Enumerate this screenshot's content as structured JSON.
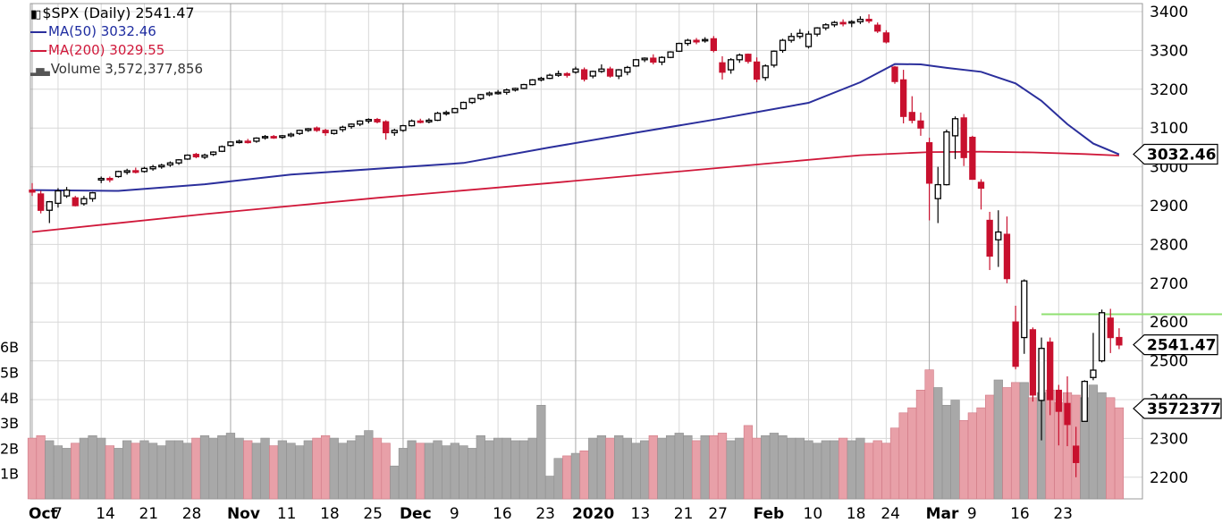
{
  "legend": {
    "symbol_title": "$SPX (Daily) 2541.47",
    "ma50_label": "MA(50) 3032.46",
    "ma200_label": "MA(200) 3029.55",
    "volume_label": "Volume 3,572,377,856"
  },
  "colors": {
    "up": "#000000",
    "down": "#c8102e",
    "ma50": "#2b2f9c",
    "ma200": "#d0183a",
    "volume_up": "#a8a8a8",
    "volume_down": "#e8a0a8",
    "grid": "#d8d8d8",
    "resistance": "#8fe070"
  },
  "chart_data": {
    "type": "candlestick",
    "symbol": "$SPX",
    "period": "Daily",
    "last_price": "2541.47",
    "ma50_last": "3032.46",
    "volume_last": "3572377",
    "ylim": [
      2170,
      3420
    ],
    "volume_ylim": [
      0,
      7
    ],
    "price_ticks": [
      "3400",
      "3300",
      "3200",
      "3100",
      "3000",
      "2900",
      "2800",
      "2700",
      "2600",
      "2500",
      "2400",
      "2300",
      "2200"
    ],
    "volume_ticks": [
      "6B",
      "5B",
      "4B",
      "3B",
      "2B",
      "1B"
    ],
    "x_labels": [
      {
        "text": "Oct",
        "i": 0,
        "bold": true
      },
      {
        "text": "7",
        "i": 3,
        "bold": false
      },
      {
        "text": "14",
        "i": 8,
        "bold": false
      },
      {
        "text": "21",
        "i": 13,
        "bold": false
      },
      {
        "text": "28",
        "i": 18,
        "bold": false
      },
      {
        "text": "Nov",
        "i": 23,
        "bold": true
      },
      {
        "text": "11",
        "i": 29,
        "bold": false
      },
      {
        "text": "18",
        "i": 34,
        "bold": false
      },
      {
        "text": "25",
        "i": 39,
        "bold": false
      },
      {
        "text": "Dec",
        "i": 43,
        "bold": true
      },
      {
        "text": "9",
        "i": 49,
        "bold": false
      },
      {
        "text": "16",
        "i": 54,
        "bold": false
      },
      {
        "text": "23",
        "i": 59,
        "bold": false
      },
      {
        "text": "2020",
        "i": 63,
        "bold": true
      },
      {
        "text": "13",
        "i": 70,
        "bold": false
      },
      {
        "text": "21",
        "i": 75,
        "bold": false
      },
      {
        "text": "27",
        "i": 79,
        "bold": false
      },
      {
        "text": "Feb",
        "i": 84,
        "bold": true
      },
      {
        "text": "10",
        "i": 90,
        "bold": false
      },
      {
        "text": "18",
        "i": 95,
        "bold": false
      },
      {
        "text": "24",
        "i": 99,
        "bold": false
      },
      {
        "text": "Mar",
        "i": 104,
        "bold": true
      },
      {
        "text": "9",
        "i": 109,
        "bold": false
      },
      {
        "text": "16",
        "i": 114,
        "bold": false
      },
      {
        "text": "23",
        "i": 119,
        "bold": false
      }
    ],
    "month_grid": [
      0,
      23,
      43,
      63,
      84,
      104
    ],
    "ohlc": [
      [
        2940,
        2958,
        2925,
        2935
      ],
      [
        2930,
        2938,
        2880,
        2888
      ],
      [
        2888,
        2912,
        2855,
        2910
      ],
      [
        2906,
        2945,
        2895,
        2938
      ],
      [
        2925,
        2948,
        2920,
        2940
      ],
      [
        2920,
        2925,
        2898,
        2900
      ],
      [
        2905,
        2925,
        2900,
        2918
      ],
      [
        2918,
        2935,
        2910,
        2933
      ],
      [
        2966,
        2975,
        2958,
        2970
      ],
      [
        2970,
        2975,
        2960,
        2968
      ],
      [
        2975,
        2990,
        2972,
        2988
      ],
      [
        2986,
        2995,
        2980,
        2990
      ],
      [
        2990,
        2998,
        2983,
        2986
      ],
      [
        2988,
        3000,
        2985,
        2996
      ],
      [
        2995,
        3005,
        2990,
        3000
      ],
      [
        3000,
        3008,
        2995,
        3004
      ],
      [
        3005,
        3014,
        3000,
        3010
      ],
      [
        3010,
        3020,
        3005,
        3018
      ],
      [
        3020,
        3032,
        3018,
        3030
      ],
      [
        3032,
        3036,
        3022,
        3026
      ],
      [
        3025,
        3034,
        3020,
        3030
      ],
      [
        3032,
        3040,
        3028,
        3038
      ],
      [
        3040,
        3055,
        3038,
        3052
      ],
      [
        3055,
        3066,
        3052,
        3064
      ],
      [
        3064,
        3070,
        3060,
        3066
      ],
      [
        3066,
        3072,
        3060,
        3064
      ],
      [
        3066,
        3076,
        3062,
        3074
      ],
      [
        3075,
        3082,
        3070,
        3078
      ],
      [
        3078,
        3082,
        3072,
        3075
      ],
      [
        3076,
        3082,
        3072,
        3080
      ],
      [
        3080,
        3088,
        3076,
        3084
      ],
      [
        3086,
        3096,
        3082,
        3094
      ],
      [
        3094,
        3100,
        3090,
        3098
      ],
      [
        3100,
        3104,
        3090,
        3094
      ],
      [
        3094,
        3098,
        3080,
        3088
      ],
      [
        3086,
        3096,
        3083,
        3094
      ],
      [
        3096,
        3106,
        3090,
        3102
      ],
      [
        3104,
        3112,
        3098,
        3110
      ],
      [
        3110,
        3120,
        3105,
        3118
      ],
      [
        3118,
        3125,
        3112,
        3122
      ],
      [
        3122,
        3126,
        3112,
        3116
      ],
      [
        3116,
        3120,
        3070,
        3088
      ],
      [
        3088,
        3098,
        3080,
        3094
      ],
      [
        3094,
        3108,
        3090,
        3106
      ],
      [
        3106,
        3122,
        3104,
        3118
      ],
      [
        3118,
        3124,
        3112,
        3116
      ],
      [
        3116,
        3125,
        3112,
        3120
      ],
      [
        3120,
        3142,
        3118,
        3138
      ],
      [
        3138,
        3145,
        3132,
        3140
      ],
      [
        3140,
        3152,
        3138,
        3150
      ],
      [
        3150,
        3168,
        3148,
        3166
      ],
      [
        3166,
        3178,
        3162,
        3176
      ],
      [
        3176,
        3188,
        3172,
        3186
      ],
      [
        3186,
        3194,
        3182,
        3190
      ],
      [
        3190,
        3198,
        3186,
        3192
      ],
      [
        3192,
        3202,
        3186,
        3198
      ],
      [
        3198,
        3204,
        3194,
        3202
      ],
      [
        3202,
        3214,
        3200,
        3212
      ],
      [
        3212,
        3226,
        3210,
        3224
      ],
      [
        3224,
        3232,
        3220,
        3228
      ],
      [
        3228,
        3240,
        3226,
        3236
      ],
      [
        3236,
        3248,
        3232,
        3240
      ],
      [
        3240,
        3244,
        3230,
        3236
      ],
      [
        3244,
        3258,
        3240,
        3252
      ],
      [
        3250,
        3256,
        3220,
        3226
      ],
      [
        3234,
        3248,
        3228,
        3246
      ],
      [
        3246,
        3264,
        3242,
        3252
      ],
      [
        3252,
        3258,
        3230,
        3234
      ],
      [
        3234,
        3252,
        3226,
        3250
      ],
      [
        3244,
        3260,
        3236,
        3256
      ],
      [
        3260,
        3278,
        3258,
        3276
      ],
      [
        3276,
        3282,
        3270,
        3280
      ],
      [
        3280,
        3290,
        3264,
        3270
      ],
      [
        3270,
        3285,
        3262,
        3282
      ],
      [
        3282,
        3298,
        3280,
        3296
      ],
      [
        3298,
        3320,
        3296,
        3318
      ],
      [
        3318,
        3330,
        3312,
        3326
      ],
      [
        3326,
        3332,
        3316,
        3322
      ],
      [
        3326,
        3334,
        3320,
        3328
      ],
      [
        3330,
        3337,
        3295,
        3300
      ],
      [
        3268,
        3285,
        3225,
        3244
      ],
      [
        3250,
        3280,
        3240,
        3276
      ],
      [
        3276,
        3292,
        3268,
        3288
      ],
      [
        3290,
        3292,
        3266,
        3272
      ],
      [
        3270,
        3282,
        3218,
        3226
      ],
      [
        3230,
        3264,
        3222,
        3260
      ],
      [
        3262,
        3300,
        3256,
        3298
      ],
      [
        3300,
        3330,
        3294,
        3326
      ],
      [
        3326,
        3345,
        3320,
        3336
      ],
      [
        3336,
        3355,
        3330,
        3344
      ],
      [
        3310,
        3350,
        3305,
        3342
      ],
      [
        3342,
        3360,
        3336,
        3358
      ],
      [
        3358,
        3370,
        3352,
        3366
      ],
      [
        3366,
        3376,
        3360,
        3372
      ],
      [
        3372,
        3380,
        3362,
        3370
      ],
      [
        3372,
        3378,
        3360,
        3374
      ],
      [
        3374,
        3388,
        3368,
        3380
      ],
      [
        3380,
        3393,
        3370,
        3376
      ],
      [
        3365,
        3372,
        3345,
        3350
      ],
      [
        3345,
        3352,
        3318,
        3322
      ],
      [
        3257,
        3260,
        3214,
        3220
      ],
      [
        3224,
        3250,
        3112,
        3130
      ],
      [
        3140,
        3182,
        3112,
        3120
      ],
      [
        3118,
        3140,
        3080,
        3100
      ],
      [
        3062,
        3075,
        2862,
        2958
      ],
      [
        2918,
        3000,
        2855,
        2954
      ],
      [
        2954,
        3096,
        2952,
        3090
      ],
      [
        3080,
        3130,
        3020,
        3124
      ],
      [
        3126,
        3136,
        3002,
        3024
      ],
      [
        3076,
        3080,
        2978,
        2968
      ],
      [
        2960,
        2968,
        2890,
        2945
      ],
      [
        2862,
        2884,
        2734,
        2770
      ],
      [
        2812,
        2888,
        2742,
        2832
      ],
      [
        2826,
        2872,
        2700,
        2712
      ],
      [
        2600,
        2642,
        2478,
        2486
      ],
      [
        2560,
        2710,
        2518,
        2706
      ],
      [
        2580,
        2586,
        2395,
        2412
      ],
      [
        2398,
        2560,
        2295,
        2532
      ],
      [
        2548,
        2560,
        2360,
        2400
      ],
      [
        2424,
        2438,
        2282,
        2370
      ],
      [
        2390,
        2460,
        2280,
        2336
      ],
      [
        2280,
        2330,
        2200,
        2238
      ],
      [
        2344,
        2450,
        2346,
        2447
      ],
      [
        2457,
        2572,
        2450,
        2476
      ],
      [
        2500,
        2632,
        2496,
        2624
      ],
      [
        2610,
        2634,
        2520,
        2560
      ],
      [
        2560,
        2584,
        2530,
        2541
      ]
    ],
    "volume": [
      2.4,
      2.5,
      2.3,
      2.1,
      2.0,
      2.2,
      2.4,
      2.5,
      2.4,
      2.1,
      2.0,
      2.3,
      2.2,
      2.3,
      2.2,
      2.1,
      2.3,
      2.3,
      2.2,
      2.4,
      2.5,
      2.4,
      2.5,
      2.6,
      2.4,
      2.3,
      2.2,
      2.4,
      2.1,
      2.3,
      2.2,
      2.1,
      2.3,
      2.4,
      2.5,
      2.4,
      2.2,
      2.3,
      2.5,
      2.7,
      2.4,
      2.2,
      1.3,
      2.0,
      2.3,
      2.2,
      2.2,
      2.3,
      2.1,
      2.2,
      2.1,
      2.0,
      2.5,
      2.3,
      2.4,
      2.4,
      2.3,
      2.3,
      2.4,
      3.7,
      0.9,
      1.6,
      1.7,
      1.8,
      1.9,
      2.4,
      2.5,
      2.4,
      2.5,
      2.4,
      2.2,
      2.3,
      2.5,
      2.4,
      2.5,
      2.6,
      2.5,
      2.3,
      2.5,
      2.5,
      2.6,
      2.3,
      2.4,
      2.9,
      2.4,
      2.5,
      2.6,
      2.5,
      2.4,
      2.4,
      2.3,
      2.2,
      2.3,
      2.3,
      2.4,
      2.3,
      2.4,
      2.2,
      2.3,
      2.2,
      2.8,
      3.4,
      3.6,
      4.3,
      5.1,
      4.4,
      3.7,
      3.9,
      3.1,
      3.4,
      3.6,
      4.1,
      4.7,
      4.4,
      4.6,
      4.6,
      4.0,
      4.2,
      4.3,
      3.8,
      4.2,
      4.1,
      4.0,
      4.5,
      4.2,
      4.0,
      3.6
    ],
    "ma50": [
      [
        0,
        2940
      ],
      [
        10,
        2938
      ],
      [
        20,
        2955
      ],
      [
        30,
        2980
      ],
      [
        40,
        2995
      ],
      [
        50,
        3010
      ],
      [
        60,
        3050
      ],
      [
        70,
        3088
      ],
      [
        80,
        3125
      ],
      [
        90,
        3165
      ],
      [
        96,
        3218
      ],
      [
        100,
        3265
      ],
      [
        103,
        3264
      ],
      [
        106,
        3255
      ],
      [
        110,
        3245
      ],
      [
        114,
        3215
      ],
      [
        117,
        3170
      ],
      [
        120,
        3110
      ],
      [
        123,
        3060
      ],
      [
        126,
        3032
      ]
    ],
    "ma200": [
      [
        0,
        2832
      ],
      [
        20,
        2878
      ],
      [
        40,
        2920
      ],
      [
        60,
        2958
      ],
      [
        80,
        2998
      ],
      [
        96,
        3030
      ],
      [
        104,
        3038
      ],
      [
        110,
        3039
      ],
      [
        116,
        3037
      ],
      [
        122,
        3033
      ],
      [
        126,
        3029
      ]
    ],
    "resistance_level": 2620,
    "resistance_start": 117
  }
}
